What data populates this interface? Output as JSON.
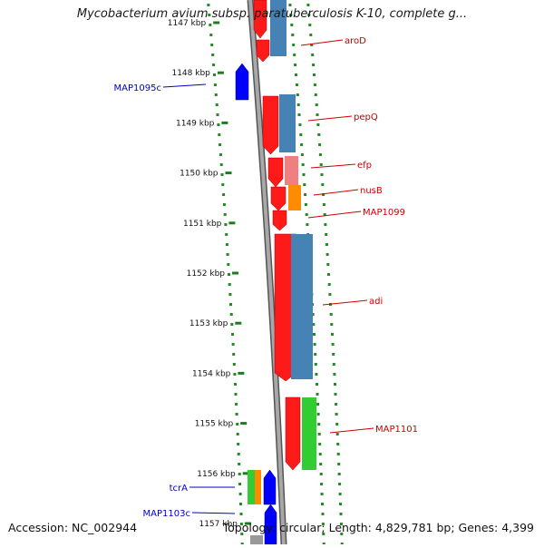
{
  "title": "Mycobacterium avium subsp. paratuberculosis K-10, complete g...",
  "footer": {
    "accession": "Accession: NC_002944",
    "summary": "Topology: circular; Length: 4,829,781 bp; Genes: 4,399"
  },
  "ticks": [
    "1147 kbp",
    "1148 kbp",
    "1149 kbp",
    "1150 kbp",
    "1151 kbp",
    "1152 kbp",
    "1153 kbp",
    "1154 kbp",
    "1155 kbp",
    "1156 kbp",
    "1157 kbp"
  ],
  "forward_labels": [
    "aroD",
    "pepQ",
    "efp",
    "nusB",
    "MAP1099",
    "adi",
    "MAP1101"
  ],
  "reverse_labels": [
    "MAP1095c",
    "tcrA",
    "MAP1103c"
  ],
  "colors": {
    "forward_gene": "#ff1a1a",
    "reverse_gene": "#0000ff",
    "cds_blue": "#4682b4",
    "cds_pink": "#f08080",
    "cds_orange": "#ff8c00",
    "cds_green": "#32cd32",
    "backbone": "#808080",
    "dots": "#228b22",
    "label_forward": "#cc0000",
    "label_reverse": "#0000cc"
  }
}
